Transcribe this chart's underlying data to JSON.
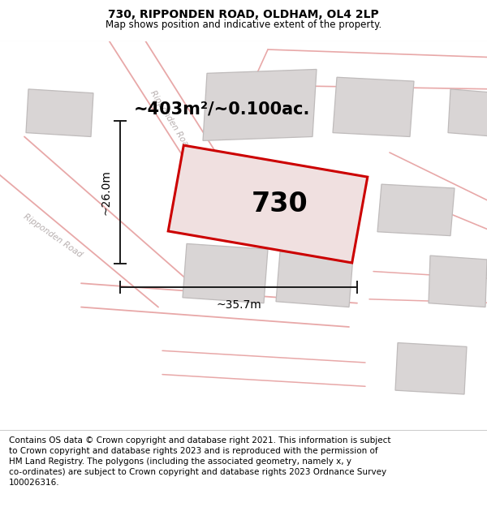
{
  "title": "730, RIPPONDEN ROAD, OLDHAM, OL4 2LP",
  "subtitle": "Map shows position and indicative extent of the property.",
  "footer": "Contains OS data © Crown copyright and database right 2021. This information is subject\nto Crown copyright and database rights 2023 and is reproduced with the permission of\nHM Land Registry. The polygons (including the associated geometry, namely x, y\nco-ordinates) are subject to Crown copyright and database rights 2023 Ordnance Survey\n100026316.",
  "area_label": "~403m²/~0.100ac.",
  "width_label": "~35.7m",
  "height_label": "~26.0m",
  "plot_number": "730",
  "bg_color": "#f2eded",
  "building_fill": "#d9d5d5",
  "building_edge": "#bfbbbb",
  "road_line_color": "#e8a8a8",
  "subject_fill": "#f0e0e0",
  "subject_edge": "#cc0000",
  "title_fontsize": 10,
  "subtitle_fontsize": 8.5,
  "footer_fontsize": 7.5,
  "area_label_fontsize": 15,
  "dim_label_fontsize": 10,
  "plot_label_fontsize": 24,
  "road_label_color": "#b8b0b0",
  "dim_line_color": "#1a1a1a"
}
